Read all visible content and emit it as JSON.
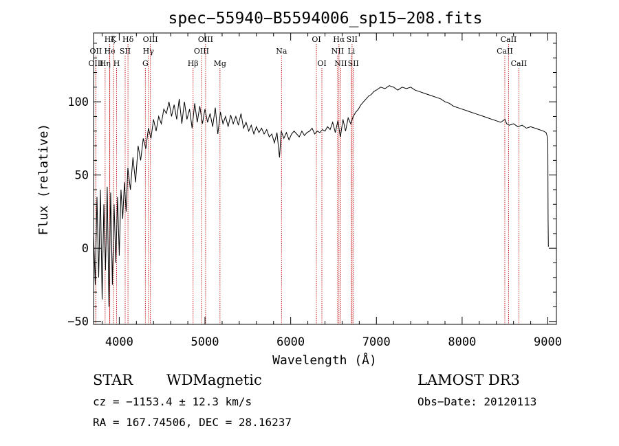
{
  "chart_data": {
    "type": "line",
    "title": "spec−55940−B5594006_sp15−208.fits",
    "xlabel": "Wavelength (Å)",
    "ylabel": "Flux (relative)",
    "xlim": [
      3700,
      9100
    ],
    "ylim": [
      -52,
      147
    ],
    "xticks": [
      4000,
      5000,
      6000,
      7000,
      8000,
      9000
    ],
    "yticks": [
      -50,
      0,
      50,
      100
    ],
    "ytick_labels": [
      "−50",
      "0",
      "50",
      "100"
    ],
    "x_minor_step": 200,
    "y_minor_step": 10,
    "series": [
      {
        "name": "flux",
        "x": [
          3700,
          3720,
          3740,
          3760,
          3780,
          3800,
          3820,
          3840,
          3860,
          3880,
          3900,
          3920,
          3940,
          3960,
          3980,
          4000,
          4020,
          4040,
          4060,
          4080,
          4100,
          4130,
          4160,
          4190,
          4220,
          4250,
          4280,
          4310,
          4340,
          4370,
          4400,
          4430,
          4460,
          4490,
          4520,
          4550,
          4580,
          4610,
          4640,
          4670,
          4700,
          4730,
          4760,
          4790,
          4820,
          4850,
          4880,
          4910,
          4940,
          4970,
          5000,
          5030,
          5060,
          5090,
          5120,
          5150,
          5180,
          5210,
          5240,
          5270,
          5300,
          5330,
          5360,
          5390,
          5420,
          5450,
          5480,
          5510,
          5540,
          5570,
          5600,
          5630,
          5660,
          5690,
          5720,
          5750,
          5780,
          5810,
          5840,
          5870,
          5890,
          5920,
          5950,
          5980,
          6010,
          6040,
          6070,
          6100,
          6130,
          6160,
          6190,
          6220,
          6250,
          6280,
          6310,
          6340,
          6370,
          6400,
          6430,
          6460,
          6490,
          6520,
          6550,
          6580,
          6610,
          6640,
          6670,
          6700,
          6730,
          6760,
          6790,
          6820,
          6850,
          6880,
          6910,
          6940,
          6970,
          7000,
          7050,
          7100,
          7150,
          7200,
          7250,
          7300,
          7350,
          7400,
          7450,
          7500,
          7550,
          7600,
          7650,
          7700,
          7750,
          7800,
          7850,
          7900,
          7950,
          8000,
          8050,
          8100,
          8150,
          8200,
          8250,
          8300,
          8350,
          8400,
          8450,
          8500,
          8520,
          8550,
          8600,
          8650,
          8700,
          8750,
          8800,
          8850,
          8900,
          8950,
          8980,
          9000,
          9003,
          9006
        ],
        "values": [
          10,
          -25,
          35,
          -20,
          40,
          -35,
          30,
          -15,
          42,
          -40,
          38,
          -25,
          30,
          -10,
          35,
          -5,
          40,
          20,
          45,
          25,
          55,
          40,
          62,
          45,
          70,
          60,
          75,
          68,
          82,
          75,
          88,
          80,
          90,
          85,
          95,
          92,
          100,
          90,
          98,
          88,
          102,
          85,
          100,
          88,
          95,
          82,
          99,
          86,
          97,
          85,
          95,
          86,
          92,
          83,
          96,
          78,
          93,
          85,
          90,
          83,
          91,
          85,
          90,
          84,
          92,
          82,
          86,
          80,
          84,
          78,
          83,
          79,
          82,
          78,
          81,
          76,
          78,
          72,
          79,
          62,
          80,
          75,
          79,
          74,
          78,
          80,
          78,
          76,
          80,
          77,
          79,
          80,
          82,
          78,
          80,
          79,
          81,
          80,
          83,
          81,
          86,
          79,
          87,
          76,
          88,
          80,
          89,
          85,
          90,
          93,
          95,
          98,
          100,
          102,
          104,
          105,
          107,
          108,
          110,
          109,
          111,
          110,
          108,
          110,
          109,
          110,
          108,
          107,
          106,
          105,
          104,
          103,
          102,
          100,
          99,
          97,
          96,
          95,
          94,
          93,
          92,
          91,
          90,
          89,
          88,
          87,
          86,
          88,
          85,
          84,
          85,
          83,
          84,
          82,
          83,
          82,
          81,
          80,
          79,
          75,
          20,
          1
        ]
      }
    ],
    "lines": [
      {
        "label": "Hζ",
        "x": 3889,
        "row": 1
      },
      {
        "label": "OII",
        "x": 3727,
        "row": 2
      },
      {
        "label": "OIII",
        "x": 3727,
        "row": 3
      },
      {
        "label": "K",
        "x": 3934,
        "row": 1
      },
      {
        "label": "He",
        "x": 3889,
        "row": 2
      },
      {
        "label": "Hη",
        "x": 3835,
        "row": 3
      },
      {
        "label": "SII",
        "x": 4069,
        "row": 2
      },
      {
        "label": "H",
        "x": 3969,
        "row": 3
      },
      {
        "label": "Hδ",
        "x": 4102,
        "row": 1
      },
      {
        "label": "OIII",
        "x": 4363,
        "row": 1
      },
      {
        "label": "Hγ",
        "x": 4340,
        "row": 2
      },
      {
        "label": "G",
        "x": 4305,
        "row": 3
      },
      {
        "label": "OIII",
        "x": 5007,
        "row": 1
      },
      {
        "label": "OIII",
        "x": 4959,
        "row": 2
      },
      {
        "label": "Hβ",
        "x": 4861,
        "row": 3
      },
      {
        "label": "Mg",
        "x": 5175,
        "row": 3
      },
      {
        "label": "Na",
        "x": 5893,
        "row": 2
      },
      {
        "label": "OI",
        "x": 6300,
        "row": 1
      },
      {
        "label": "OI",
        "x": 6364,
        "row": 3
      },
      {
        "label": "Hα",
        "x": 6563,
        "row": 1
      },
      {
        "label": "NII",
        "x": 6548,
        "row": 2
      },
      {
        "label": "NII",
        "x": 6584,
        "row": 3
      },
      {
        "label": "SII",
        "x": 6716,
        "row": 1
      },
      {
        "label": "Li",
        "x": 6708,
        "row": 2
      },
      {
        "label": "SII",
        "x": 6731,
        "row": 3
      },
      {
        "label": "CaII",
        "x": 8542,
        "row": 1
      },
      {
        "label": "CaII",
        "x": 8498,
        "row": 2
      },
      {
        "label": "CaII",
        "x": 8662,
        "row": 3
      }
    ],
    "line_marker_color": "#cc2222"
  },
  "info": {
    "class": "STAR",
    "subclass": "WDMagnetic",
    "survey": "LAMOST DR3",
    "cz": "cz = −1153.4 ± 12.3 km/s",
    "obs_date": "Obs−Date: 20120113",
    "radec": "RA = 167.74506, DEC =  28.16237"
  }
}
